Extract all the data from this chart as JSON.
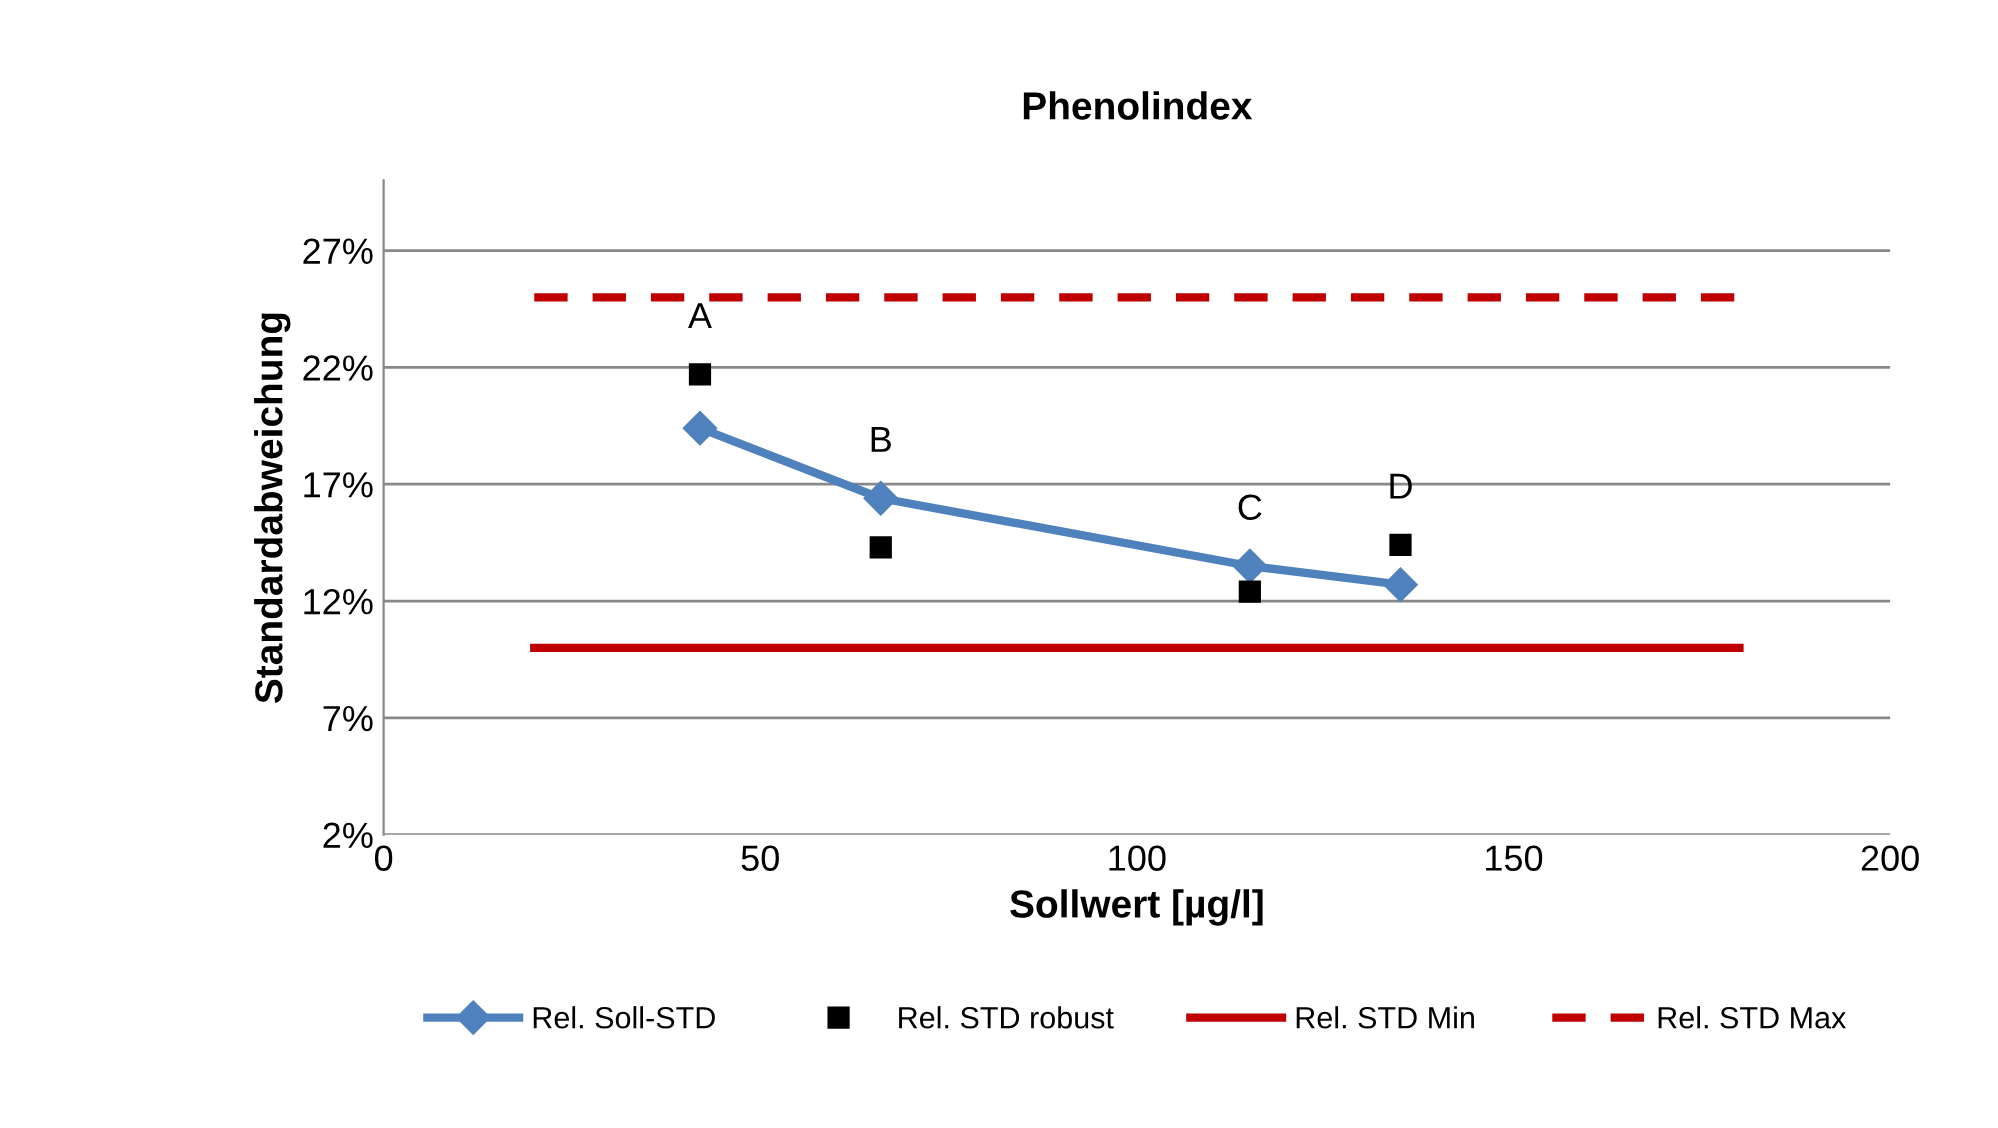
{
  "chart_data": {
    "type": "line",
    "title": "Phenolindex",
    "xlabel": "Sollwert [µg/l]",
    "ylabel": "Standardabweichung",
    "xlim": [
      0,
      200
    ],
    "xticks": [
      0,
      50,
      100,
      150,
      200
    ],
    "ylim": [
      2,
      30
    ],
    "yticks": [
      {
        "value": 2,
        "label": "2%"
      },
      {
        "value": 7,
        "label": "7%"
      },
      {
        "value": 12,
        "label": "12%"
      },
      {
        "value": 17,
        "label": "17%"
      },
      {
        "value": 22,
        "label": "22%"
      },
      {
        "value": 27,
        "label": "27%"
      }
    ],
    "grid": "y",
    "legend": "bottom",
    "series": [
      {
        "name": "Rel. Soll-STD",
        "color": "#4f81bd",
        "marker": "diamond",
        "line_style": "solid",
        "x": [
          42,
          66,
          115,
          135
        ],
        "values": [
          19.4,
          16.4,
          13.5,
          12.7
        ]
      },
      {
        "name": "Rel. STD robust",
        "type": "scatter",
        "color": "#000000",
        "marker": "square",
        "x": [
          42,
          66,
          115,
          135
        ],
        "values": [
          21.7,
          14.3,
          12.4,
          14.4
        ]
      },
      {
        "name": "Rel. STD Min",
        "color": "#c00000",
        "marker": "none",
        "line_style": "solid",
        "x": [
          20,
          180
        ],
        "values": [
          10,
          10
        ]
      },
      {
        "name": "Rel. STD Max",
        "color": "#c00000",
        "marker": "none",
        "line_style": "dashed",
        "x": [
          20,
          180
        ],
        "values": [
          25,
          25
        ]
      }
    ],
    "annotations": [
      {
        "text": "A",
        "x": 42,
        "y": 21.7
      },
      {
        "text": "B",
        "x": 66,
        "y": 16.4
      },
      {
        "text": "C",
        "x": 115,
        "y": 13.5
      },
      {
        "text": "D",
        "x": 135,
        "y": 14.4
      }
    ]
  }
}
